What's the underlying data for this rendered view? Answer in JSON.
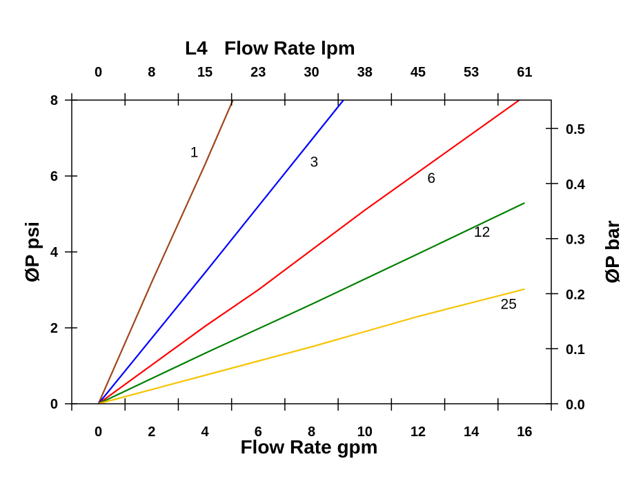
{
  "chart_data": {
    "type": "line",
    "title": "L4",
    "xlabel": "Flow Rate gpm",
    "x2label": "Flow Rate lpm",
    "ylabel": "ØP psi",
    "y2label": "ØP bar",
    "xlim": [
      -1,
      17
    ],
    "ylim": [
      0,
      8
    ],
    "y2lim": [
      0,
      0.5516
    ],
    "grid": false,
    "x_ticks": [
      "0",
      "2",
      "4",
      "6",
      "8",
      "10",
      "12",
      "14",
      "16"
    ],
    "x2_ticks": [
      "0",
      "8",
      "15",
      "23",
      "30",
      "38",
      "45",
      "53",
      "61"
    ],
    "y_ticks": [
      "0",
      "2",
      "4",
      "6",
      "8"
    ],
    "y2_ticks": [
      "0.0",
      "0.1",
      "0.2",
      "0.3",
      "0.4",
      "0.5"
    ],
    "series": [
      {
        "name": "1",
        "color": "#a0461a",
        "points": [
          [
            0,
            0
          ],
          [
            2,
            3.2
          ],
          [
            4,
            6.3
          ],
          [
            5.05,
            8
          ]
        ],
        "label_at": [
          3.6,
          6.5
        ]
      },
      {
        "name": "3",
        "color": "#0000ff",
        "points": [
          [
            0,
            0
          ],
          [
            4,
            3.45
          ],
          [
            8,
            6.95
          ],
          [
            9.2,
            8
          ]
        ],
        "label_at": [
          8.1,
          6.25
        ]
      },
      {
        "name": "6",
        "color": "#ff0000",
        "points": [
          [
            0,
            0
          ],
          [
            4,
            2.04
          ],
          [
            6,
            3.0
          ],
          [
            8,
            4.05
          ],
          [
            10,
            5.1
          ],
          [
            12,
            6.1
          ],
          [
            14,
            7.1
          ],
          [
            15.8,
            8
          ]
        ],
        "label_at": [
          12.5,
          5.82
        ]
      },
      {
        "name": "12",
        "color": "#008000",
        "points": [
          [
            0,
            0
          ],
          [
            4,
            1.33
          ],
          [
            8,
            2.62
          ],
          [
            12,
            3.95
          ],
          [
            16,
            5.29
          ]
        ],
        "label_at": [
          14.4,
          4.4
        ]
      },
      {
        "name": "25",
        "color": "#f5c400",
        "points": [
          [
            0,
            0
          ],
          [
            4,
            0.75
          ],
          [
            8,
            1.5
          ],
          [
            10,
            1.9
          ],
          [
            12,
            2.3
          ],
          [
            16,
            3.02
          ]
        ],
        "label_at": [
          15.4,
          2.5
        ]
      }
    ]
  }
}
